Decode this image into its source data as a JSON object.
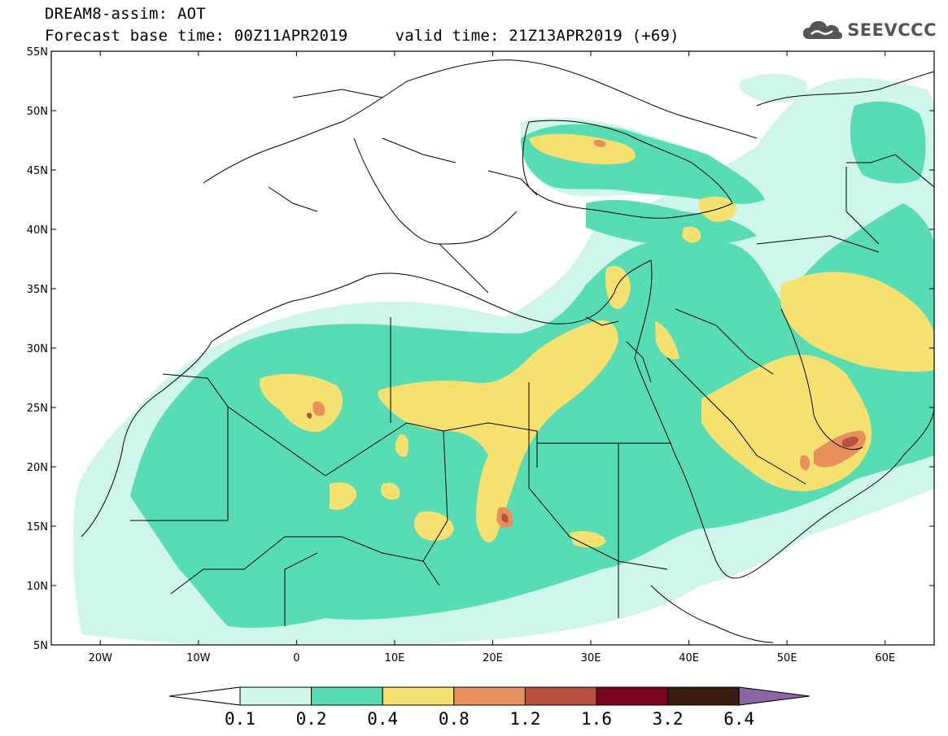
{
  "header": {
    "title_line1": "DREAM8-assim: AOT",
    "title_line2": "Forecast base time: 00Z11APR2019     valid time: 21Z13APR2019 (+69)",
    "brand": "SEEVCCC",
    "brand_icon": "cloud-icon"
  },
  "map": {
    "projection": "lat-lon",
    "lon_range": [
      -25,
      65
    ],
    "lat_range": [
      5,
      55
    ],
    "lat_labels": [
      "55N",
      "50N",
      "45N",
      "40N",
      "35N",
      "30N",
      "25N",
      "20N",
      "15N",
      "10N",
      "5N"
    ],
    "lat_values": [
      55,
      50,
      45,
      40,
      35,
      30,
      25,
      20,
      15,
      10,
      5
    ],
    "lon_labels": [
      "20W",
      "10W",
      "0",
      "10E",
      "20E",
      "30E",
      "40E",
      "50E",
      "60E"
    ],
    "lon_values": [
      -20,
      -10,
      0,
      10,
      20,
      30,
      40,
      50,
      60
    ],
    "colors": {
      "0.1-0.2": "#cff6ea",
      "0.2-0.4": "#58dcb4",
      "0.4-0.8": "#f5e070",
      "0.8-1.2": "#e8905c",
      "1.2-1.6": "#b85040",
      "1.6-3.2": "#7a0520",
      "3.2-6.4": "#3c1c10",
      "above": "#8c64a8"
    }
  },
  "colorbar": {
    "levels": [
      "0.1",
      "0.2",
      "0.4",
      "0.8",
      "1.2",
      "1.6",
      "3.2",
      "6.4"
    ],
    "colors": [
      "#cff6ea",
      "#58dcb4",
      "#f5e070",
      "#e8905c",
      "#b85040",
      "#7a0520",
      "#3c1c10"
    ],
    "below_color": "#ffffff",
    "above_color": "#8c64a8"
  }
}
